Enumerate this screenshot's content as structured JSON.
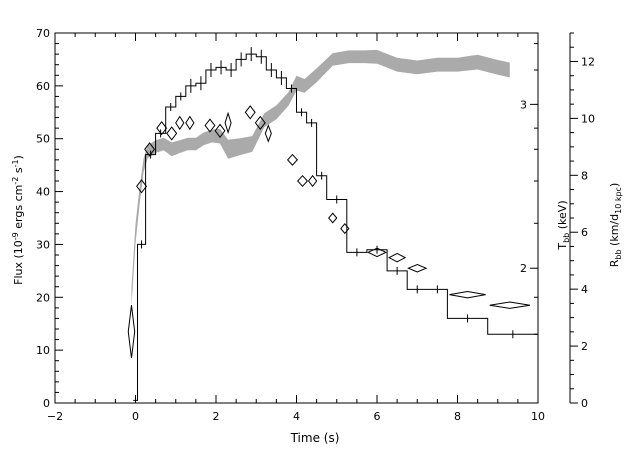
{
  "chart_data": {
    "type": "line",
    "xlabel": "Time (s)",
    "ylabel_left": "Flux (10^-9 ergs cm^-2 s^-1)",
    "ylabel_right_inner": "T_bb (keV)",
    "ylabel_right_outer": "R_bb (km/d_10 kpc)",
    "xlim": [
      -2,
      10
    ],
    "ylim_left": [
      0,
      70
    ],
    "ylim_right_outer": [
      0,
      13
    ],
    "x_ticks": [
      -2,
      0,
      2,
      4,
      6,
      8,
      10
    ],
    "y_ticks_left": [
      0,
      10,
      20,
      30,
      40,
      50,
      60,
      70
    ],
    "y_ticks_right_outer": [
      0,
      2,
      4,
      6,
      8,
      10,
      12
    ],
    "y_ticks_right_inner": [
      {
        "label": "2",
        "flux_equiv": 25.5
      },
      {
        "label": "3",
        "flux_equiv": 56.5
      }
    ],
    "flux_steps": [
      {
        "x0": -0.05,
        "x1": 0.05,
        "y": 0.5
      },
      {
        "x0": 0.05,
        "x1": 0.25,
        "y": 30
      },
      {
        "x0": 0.25,
        "x1": 0.5,
        "y": 47
      },
      {
        "x0": 0.5,
        "x1": 0.75,
        "y": 51
      },
      {
        "x0": 0.75,
        "x1": 1.0,
        "y": 56
      },
      {
        "x0": 1.0,
        "x1": 1.25,
        "y": 58
      },
      {
        "x0": 1.25,
        "x1": 1.5,
        "y": 60
      },
      {
        "x0": 1.5,
        "x1": 1.75,
        "y": 60.5
      },
      {
        "x0": 1.75,
        "x1": 2.0,
        "y": 63
      },
      {
        "x0": 2.0,
        "x1": 2.25,
        "y": 63.5
      },
      {
        "x0": 2.25,
        "x1": 2.5,
        "y": 63
      },
      {
        "x0": 2.5,
        "x1": 2.75,
        "y": 65
      },
      {
        "x0": 2.75,
        "x1": 3.0,
        "y": 66
      },
      {
        "x0": 3.0,
        "x1": 3.25,
        "y": 65.5
      },
      {
        "x0": 3.25,
        "x1": 3.5,
        "y": 63
      },
      {
        "x0": 3.5,
        "x1": 3.75,
        "y": 61.5
      },
      {
        "x0": 3.75,
        "x1": 4.0,
        "y": 59.5
      },
      {
        "x0": 4.0,
        "x1": 4.25,
        "y": 55
      },
      {
        "x0": 4.25,
        "x1": 4.5,
        "y": 53
      },
      {
        "x0": 4.5,
        "x1": 4.75,
        "y": 43
      },
      {
        "x0": 4.75,
        "x1": 5.25,
        "y": 38.5
      },
      {
        "x0": 5.25,
        "x1": 5.75,
        "y": 28.5
      },
      {
        "x0": 5.75,
        "x1": 6.25,
        "y": 29
      },
      {
        "x0": 6.25,
        "x1": 6.75,
        "y": 25
      },
      {
        "x0": 6.75,
        "x1": 7.25,
        "y": 21.5
      },
      {
        "x0": 7.25,
        "x1": 7.75,
        "y": 21.5
      },
      {
        "x0": 7.75,
        "x1": 8.75,
        "y": 16
      },
      {
        "x0": 8.75,
        "x1": 10.0,
        "y": 13
      }
    ],
    "temperature_diamonds": [
      {
        "x": -0.1,
        "y": 13.5,
        "dx": 0.08,
        "dy": 5
      },
      {
        "x": 0.15,
        "y": 41,
        "dx": 0.12,
        "dy": 1.2
      },
      {
        "x": 0.35,
        "y": 48,
        "dx": 0.12,
        "dy": 1.2
      },
      {
        "x": 0.65,
        "y": 52,
        "dx": 0.12,
        "dy": 1.2
      },
      {
        "x": 0.9,
        "y": 51,
        "dx": 0.12,
        "dy": 1.2
      },
      {
        "x": 1.1,
        "y": 53,
        "dx": 0.1,
        "dy": 1.2
      },
      {
        "x": 1.35,
        "y": 53,
        "dx": 0.1,
        "dy": 1.2
      },
      {
        "x": 1.85,
        "y": 52.5,
        "dx": 0.12,
        "dy": 1.2
      },
      {
        "x": 2.1,
        "y": 51.5,
        "dx": 0.12,
        "dy": 1.2
      },
      {
        "x": 2.3,
        "y": 53,
        "dx": 0.06,
        "dy": 1.8
      },
      {
        "x": 2.85,
        "y": 55,
        "dx": 0.12,
        "dy": 1.2
      },
      {
        "x": 3.1,
        "y": 53,
        "dx": 0.12,
        "dy": 1.2
      },
      {
        "x": 3.3,
        "y": 51,
        "dx": 0.06,
        "dy": 1.5
      },
      {
        "x": 3.9,
        "y": 46,
        "dx": 0.12,
        "dy": 1.0
      },
      {
        "x": 4.15,
        "y": 42,
        "dx": 0.12,
        "dy": 1.0
      },
      {
        "x": 4.4,
        "y": 42,
        "dx": 0.1,
        "dy": 1.0
      },
      {
        "x": 4.9,
        "y": 35,
        "dx": 0.1,
        "dy": 0.9
      },
      {
        "x": 5.2,
        "y": 33,
        "dx": 0.1,
        "dy": 0.9
      },
      {
        "x": 6.0,
        "y": 28.5,
        "dx": 0.22,
        "dy": 0.8
      },
      {
        "x": 6.5,
        "y": 27.5,
        "dx": 0.2,
        "dy": 0.8
      },
      {
        "x": 7.0,
        "y": 25.5,
        "dx": 0.22,
        "dy": 0.7
      },
      {
        "x": 8.25,
        "y": 20.5,
        "dx": 0.45,
        "dy": 0.6
      },
      {
        "x": 9.3,
        "y": 18.5,
        "dx": 0.5,
        "dy": 0.6
      }
    ],
    "radius_band": {
      "x": [
        -0.1,
        0.0,
        0.1,
        0.2,
        0.3,
        0.5,
        0.7,
        0.9,
        1.1,
        1.3,
        1.5,
        1.7,
        1.9,
        2.1,
        2.3,
        2.6,
        2.9,
        3.2,
        3.5,
        3.8,
        4.0,
        4.2,
        4.5,
        4.9,
        5.3,
        5.7,
        6.0,
        6.5,
        7.0,
        7.5,
        8.0,
        8.5,
        9.0,
        9.3
      ],
      "y": [
        20,
        32,
        39,
        45,
        47.5,
        48.5,
        49,
        48,
        48.5,
        49,
        49,
        50,
        50.5,
        50.5,
        48,
        48.5,
        49,
        53.5,
        55,
        57.5,
        60.5,
        60,
        62,
        65,
        65.5,
        65.5,
        65.5,
        64,
        63.5,
        64,
        64,
        64.5,
        63.5,
        63
      ],
      "half_width": [
        1.8,
        1.8,
        1.6,
        1.3,
        1.2,
        1.2,
        1.2,
        1.3,
        1.2,
        1.2,
        1.2,
        1.2,
        1.2,
        1.4,
        1.8,
        1.6,
        1.5,
        1.3,
        1.3,
        1.3,
        1.4,
        1.3,
        1.3,
        1.2,
        1.2,
        1.2,
        1.3,
        1.3,
        1.3,
        1.3,
        1.3,
        1.4,
        1.4,
        1.4
      ]
    },
    "colors": {
      "band": "#aaaaaa",
      "line": "#000000"
    }
  }
}
